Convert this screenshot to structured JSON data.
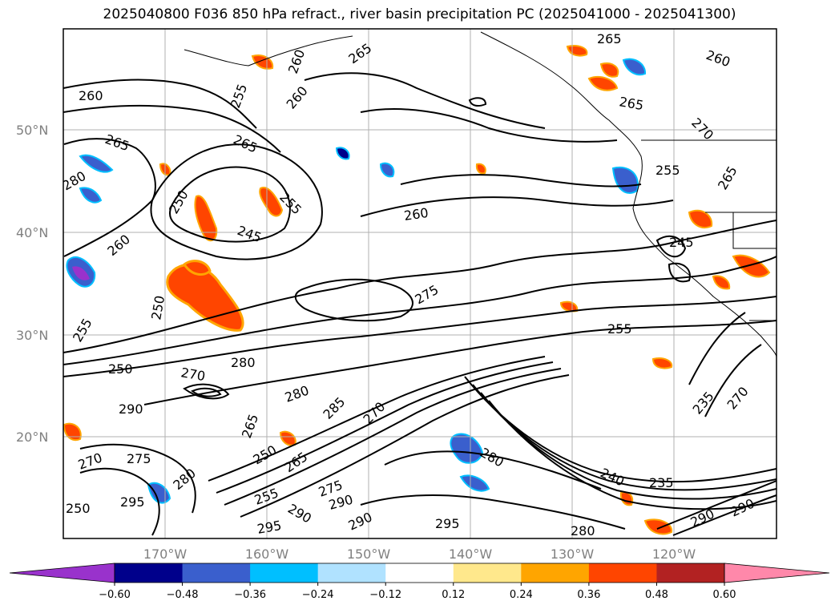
{
  "title": "2025040800 F036 850 hPa refract., river basin precipitation PC (2025041000 - 2025041300)",
  "lat_labels": [
    "50°N",
    "40°N",
    "30°N",
    "20°N"
  ],
  "lon_labels": [
    "170°W",
    "160°W",
    "150°W",
    "140°W",
    "130°W",
    "120°W"
  ],
  "colorbar": {
    "colors": [
      "#9932CC",
      "#00008B",
      "#3A5FCD",
      "#00BFFF",
      "#B0E2FF",
      "#FFFFFF",
      "#FFE88C",
      "#FFA500",
      "#FF4500",
      "#B22222",
      "#FF88AA"
    ],
    "ticks": [
      "−0.60",
      "−0.48",
      "−0.36",
      "−0.24",
      "−0.12",
      "0.12",
      "0.24",
      "0.36",
      "0.48",
      "0.60"
    ]
  },
  "contour_labels": [
    "260",
    "265",
    "260",
    "265",
    "255",
    "260",
    "270",
    "250",
    "265",
    "255",
    "245",
    "260",
    "280",
    "250",
    "245",
    "255",
    "245",
    "250",
    "260",
    "275",
    "250",
    "255",
    "250",
    "280",
    "280",
    "285",
    "290",
    "270",
    "285",
    "275",
    "265",
    "275",
    "280",
    "265",
    "285",
    "290",
    "290",
    "295",
    "295",
    "290",
    "280",
    "280",
    "240",
    "235",
    "270",
    "265",
    "255",
    "235",
    "240",
    "260",
    "290",
    "270",
    "265",
    "270",
    "250",
    "255",
    "290"
  ]
}
